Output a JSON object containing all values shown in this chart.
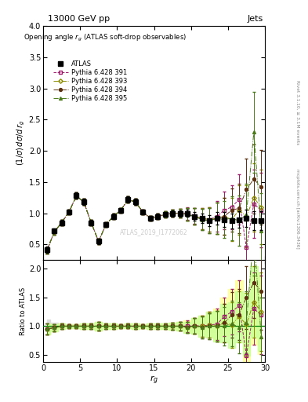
{
  "title_top": "13000 GeV pp",
  "title_right": "Jets",
  "plot_title": "Opening angle r_{g} (ATLAS soft-drop observables)",
  "ylabel_main": "(1/σ) dσ/d r_{g}",
  "ylabel_ratio": "Ratio to ATLAS",
  "xlabel": "r_{g}",
  "watermark": "ATLAS_2019_I1772062",
  "rivet_text": "Rivet 3.1.10, ≥ 3.1M events",
  "mcplots_text": "mcplots.cern.ch [arXiv:1306.3436]",
  "ylim_main": [
    0.25,
    4.0
  ],
  "ylim_ratio": [
    0.38,
    2.15
  ],
  "xlim": [
    0,
    30
  ],
  "x_data": [
    0.5,
    1.5,
    2.5,
    3.5,
    4.5,
    5.5,
    6.5,
    7.5,
    8.5,
    9.5,
    10.5,
    11.5,
    12.5,
    13.5,
    14.5,
    15.5,
    16.5,
    17.5,
    18.5,
    19.5,
    20.5,
    21.5,
    22.5,
    23.5,
    24.5,
    25.5,
    26.5,
    27.5,
    28.5,
    29.5
  ],
  "atlas_y": [
    0.42,
    0.72,
    0.85,
    1.02,
    1.28,
    1.18,
    0.85,
    0.55,
    0.82,
    0.95,
    1.05,
    1.22,
    1.18,
    1.02,
    0.92,
    0.95,
    0.98,
    1.0,
    1.0,
    1.0,
    0.95,
    0.92,
    0.88,
    0.92,
    0.9,
    0.88,
    0.9,
    0.92,
    0.88,
    0.88
  ],
  "atlas_yerr": [
    0.05,
    0.04,
    0.04,
    0.04,
    0.05,
    0.05,
    0.04,
    0.04,
    0.04,
    0.04,
    0.04,
    0.05,
    0.05,
    0.04,
    0.04,
    0.04,
    0.04,
    0.05,
    0.05,
    0.06,
    0.07,
    0.08,
    0.09,
    0.1,
    0.12,
    0.12,
    0.13,
    0.14,
    0.15,
    0.15
  ],
  "py391_y": [
    0.4,
    0.7,
    0.85,
    1.02,
    1.28,
    1.18,
    0.85,
    0.55,
    0.82,
    0.95,
    1.05,
    1.22,
    1.18,
    1.02,
    0.92,
    0.95,
    0.98,
    1.0,
    1.0,
    1.0,
    0.96,
    0.92,
    0.9,
    0.95,
    1.05,
    1.1,
    1.22,
    0.45,
    1.15,
    1.05
  ],
  "py391_yerr": [
    0.04,
    0.04,
    0.04,
    0.04,
    0.05,
    0.05,
    0.04,
    0.04,
    0.04,
    0.04,
    0.04,
    0.05,
    0.05,
    0.04,
    0.04,
    0.04,
    0.05,
    0.06,
    0.07,
    0.1,
    0.13,
    0.17,
    0.2,
    0.25,
    0.3,
    0.35,
    0.4,
    0.5,
    0.55,
    0.6
  ],
  "py393_y": [
    0.4,
    0.7,
    0.85,
    1.02,
    1.28,
    1.18,
    0.85,
    0.55,
    0.82,
    0.95,
    1.05,
    1.22,
    1.18,
    1.02,
    0.92,
    0.95,
    0.98,
    1.0,
    1.0,
    0.98,
    0.95,
    0.92,
    0.9,
    0.92,
    0.95,
    0.9,
    1.05,
    0.95,
    1.25,
    1.1
  ],
  "py393_yerr": [
    0.04,
    0.04,
    0.04,
    0.04,
    0.05,
    0.05,
    0.04,
    0.04,
    0.04,
    0.04,
    0.04,
    0.05,
    0.05,
    0.04,
    0.04,
    0.04,
    0.05,
    0.06,
    0.07,
    0.1,
    0.13,
    0.17,
    0.2,
    0.25,
    0.3,
    0.35,
    0.4,
    0.5,
    0.55,
    0.6
  ],
  "py394_y": [
    0.4,
    0.7,
    0.85,
    1.02,
    1.28,
    1.18,
    0.85,
    0.55,
    0.82,
    0.95,
    1.05,
    1.22,
    1.18,
    1.02,
    0.92,
    0.95,
    0.98,
    1.0,
    1.0,
    0.98,
    0.95,
    0.9,
    0.88,
    0.92,
    0.95,
    1.05,
    1.08,
    1.38,
    1.55,
    1.42
  ],
  "py394_yerr": [
    0.04,
    0.04,
    0.04,
    0.04,
    0.05,
    0.05,
    0.04,
    0.04,
    0.04,
    0.04,
    0.04,
    0.05,
    0.05,
    0.04,
    0.04,
    0.04,
    0.05,
    0.06,
    0.07,
    0.1,
    0.13,
    0.17,
    0.2,
    0.25,
    0.3,
    0.35,
    0.4,
    0.5,
    0.55,
    0.6
  ],
  "py395_y": [
    0.4,
    0.7,
    0.85,
    1.02,
    1.28,
    1.18,
    0.85,
    0.55,
    0.82,
    0.95,
    1.05,
    1.22,
    1.18,
    1.02,
    0.92,
    0.95,
    0.98,
    1.0,
    1.0,
    0.98,
    0.95,
    0.9,
    0.88,
    0.92,
    0.9,
    0.92,
    0.88,
    0.98,
    2.3,
    0.72
  ],
  "py395_yerr": [
    0.04,
    0.04,
    0.04,
    0.04,
    0.05,
    0.05,
    0.04,
    0.04,
    0.04,
    0.04,
    0.04,
    0.05,
    0.05,
    0.04,
    0.04,
    0.04,
    0.05,
    0.06,
    0.07,
    0.1,
    0.13,
    0.17,
    0.2,
    0.25,
    0.3,
    0.35,
    0.4,
    0.5,
    0.65,
    0.6
  ],
  "color_atlas": "#000000",
  "color_391": "#9b1a6a",
  "color_393": "#8b8b00",
  "color_394": "#5a3010",
  "color_395": "#4a7a1a",
  "ratio_391_band_color": "#ffff99",
  "ratio_393_band_color": "#ccff99",
  "bg_color": "#ffffff",
  "xticks": [
    0,
    5,
    10,
    15,
    20,
    25,
    30
  ],
  "yticks_main": [
    0.5,
    1.0,
    1.5,
    2.0,
    2.5,
    3.0,
    3.5,
    4.0
  ],
  "yticks_ratio": [
    0.5,
    1.0,
    1.5,
    2.0
  ]
}
